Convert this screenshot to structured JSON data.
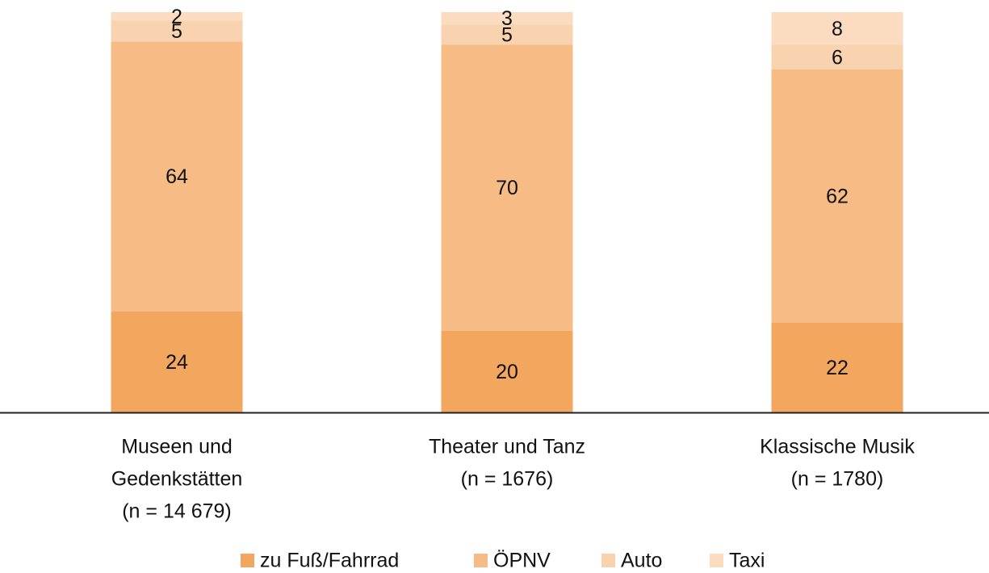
{
  "chart_data": {
    "type": "bar",
    "stacking": "percent",
    "categories": [
      [
        "Museen und",
        "Gedenkstätten",
        "(n = 14 679)"
      ],
      [
        "Theater und Tanz",
        "(n = 1676)"
      ],
      [
        "Klassische Musik",
        "(n = 1780)"
      ]
    ],
    "series": [
      {
        "name": "zu Fuß/Fahrrad",
        "color": "#f2a65e",
        "values": [
          24,
          20,
          22
        ]
      },
      {
        "name": "ÖPNV",
        "color": "#f7bb85",
        "values": [
          64,
          70,
          62
        ]
      },
      {
        "name": "Auto",
        "color": "#f9d3b0",
        "values": [
          5,
          5,
          6
        ]
      },
      {
        "name": "Taxi",
        "color": "#fbdcc1",
        "values": [
          2,
          3,
          8
        ]
      }
    ],
    "legend": "bottom"
  }
}
